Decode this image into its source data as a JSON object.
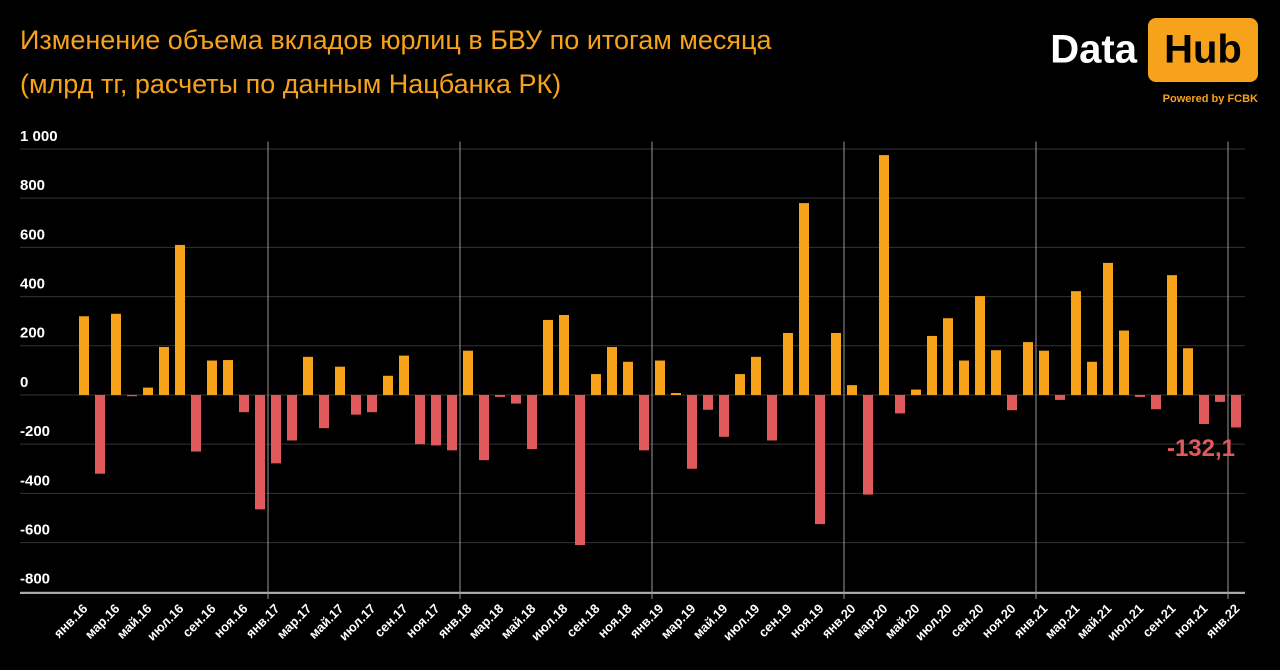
{
  "logo": {
    "left": "Data",
    "right": "Hub",
    "tagline": "Powered by FCBK"
  },
  "chart_data": {
    "type": "bar",
    "title": "Изменение объема вкладов юрлиц в БВУ по итогам месяца",
    "subtitle": "(млрд тг, расчеты по данным Нацбанка РК)",
    "categories": [
      "янв.16",
      null,
      "мар.16",
      null,
      "май.16",
      null,
      "июл.16",
      null,
      "сен.16",
      null,
      "ноя.16",
      null,
      "янв.17",
      null,
      "мар.17",
      null,
      "май.17",
      null,
      "июл.17",
      null,
      "сен.17",
      null,
      "ноя.17",
      null,
      "янв.18",
      null,
      "мар.18",
      null,
      "май.18",
      null,
      "июл.18",
      null,
      "сен.18",
      null,
      "ноя.18",
      null,
      "янв.19",
      null,
      "мар.19",
      null,
      "май.19",
      null,
      "июл.19",
      null,
      "сен.19",
      null,
      "ноя.19",
      null,
      "янв.20",
      null,
      "мар.20",
      null,
      "май.20",
      null,
      "июл.20",
      null,
      "сен.20",
      null,
      "ноя.20",
      null,
      "янв.21",
      null,
      "мар.21",
      null,
      "май.21",
      null,
      "июл.21",
      null,
      "сен.21",
      null,
      "ноя.21",
      null,
      "янв.22"
    ],
    "values": [
      320,
      -320,
      330,
      -5,
      30,
      195,
      610,
      -230,
      140,
      142,
      -70,
      -465,
      -278,
      -185,
      155,
      -135,
      115,
      -80,
      -70,
      78,
      160,
      -200,
      -205,
      -225,
      180,
      -265,
      -8,
      -35,
      -220,
      305,
      325,
      -610,
      85,
      195,
      135,
      -225,
      140,
      8,
      -300,
      -60,
      -170,
      85,
      155,
      -185,
      252,
      780,
      -525,
      252,
      40,
      -405,
      975,
      -75,
      22,
      240,
      312,
      140,
      402,
      182,
      -62,
      215,
      180,
      -20,
      422,
      135,
      537,
      262,
      -8,
      -58,
      487,
      190,
      -118,
      -28,
      -132.1
    ],
    "value_labels": [
      null,
      null,
      null,
      null,
      null,
      null,
      null,
      null,
      null,
      null,
      null,
      null,
      null,
      null,
      null,
      null,
      null,
      null,
      null,
      null,
      null,
      null,
      null,
      null,
      null,
      null,
      null,
      null,
      null,
      null,
      null,
      null,
      null,
      null,
      null,
      null,
      null,
      null,
      null,
      null,
      null,
      null,
      null,
      null,
      null,
      null,
      null,
      null,
      null,
      null,
      null,
      null,
      null,
      null,
      null,
      null,
      null,
      null,
      null,
      null,
      null,
      null,
      null,
      null,
      null,
      null,
      null,
      null,
      null,
      null,
      null,
      null,
      "-132,1"
    ],
    "color": "#f7a21b",
    "negative_color": "#e05a5c",
    "ylim": [
      -805,
      1030
    ],
    "yticks": [
      {
        "value": 1000,
        "label": "1 000"
      },
      800,
      600,
      400,
      200,
      0,
      -200,
      -400,
      -600,
      -800
    ],
    "grid": true
  }
}
